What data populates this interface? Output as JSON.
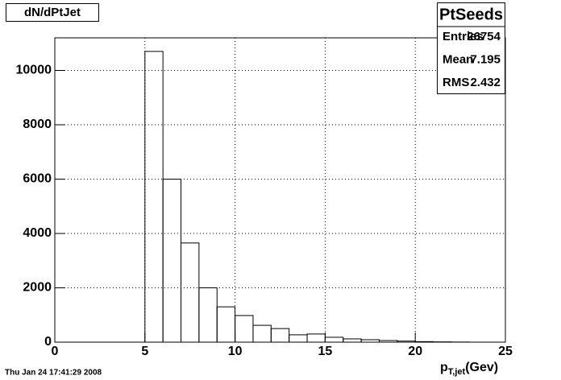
{
  "chart_data": {
    "type": "histogram",
    "title": "dN/dPtJet",
    "bins": [
      0,
      1,
      2,
      3,
      4,
      5,
      6,
      7,
      8,
      9,
      10,
      11,
      12,
      13,
      14,
      15,
      16,
      17,
      18,
      19,
      20,
      21,
      22,
      23,
      24,
      25
    ],
    "values": [
      0,
      0,
      0,
      0,
      0,
      10700,
      6000,
      3650,
      2000,
      1300,
      980,
      620,
      500,
      270,
      300,
      180,
      120,
      90,
      60,
      40,
      20,
      10,
      5,
      0,
      0
    ],
    "color": "#000000",
    "xlim": [
      0,
      25
    ],
    "xticks": [
      0,
      5,
      10,
      15,
      20,
      25
    ],
    "ylim": [
      0,
      11200
    ],
    "yticks": [
      0,
      2000,
      4000,
      6000,
      8000,
      10000
    ],
    "grid": true,
    "xlabel": "p",
    "xlabel_sub": "T,jet",
    "xlabel_tail": "(Gev)",
    "stats": {
      "title": "PtSeeds",
      "rows": [
        {
          "label": "Entries",
          "value": 26754
        },
        {
          "label": "Mean",
          "value": 7.195
        },
        {
          "label": "RMS",
          "value": 2.432
        }
      ]
    },
    "footer": "Thu Jan 24 17:41:29 2008"
  }
}
